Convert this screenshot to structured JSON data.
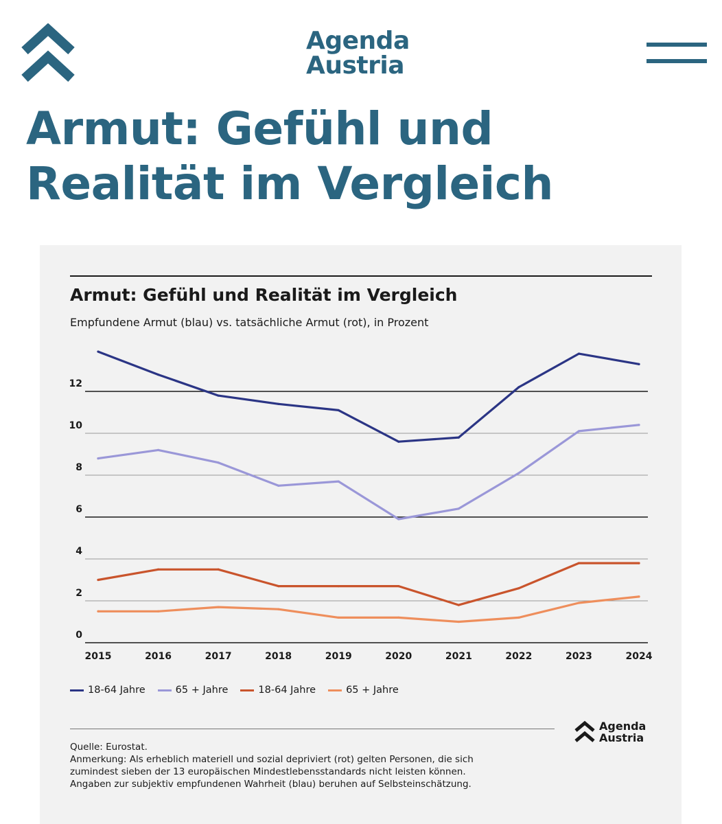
{
  "header": {
    "brand_line1": "Agenda",
    "brand_line2": "Austria",
    "colors": {
      "brand": "#2b6580"
    },
    "icons": {
      "logo": "double-chevron-up-icon",
      "menu": "hamburger-menu-icon"
    }
  },
  "article": {
    "title_line1": "Armut: Gefühl und",
    "title_line2": "Realität im Vergleich"
  },
  "chart_data": {
    "type": "line",
    "title": "Armut: Gefühl und Realität im Vergleich",
    "subtitle": "Empfundene Armut (blau) vs. tatsächliche Armut (rot), in Prozent",
    "xlabel": "",
    "ylabel": "",
    "x": [
      2015,
      2016,
      2017,
      2018,
      2019,
      2020,
      2021,
      2022,
      2023,
      2024
    ],
    "x_tick_labels": [
      "2015",
      "2016",
      "2017",
      "2018",
      "2019",
      "2020",
      "2021",
      "2022",
      "2023",
      "2024"
    ],
    "ylim": [
      0,
      14
    ],
    "y_ticks": [
      0,
      2,
      4,
      6,
      8,
      10,
      12
    ],
    "grid": true,
    "legend_position": "bottom-left",
    "series": [
      {
        "name": "18-64 Jahre",
        "color": "#2b3585",
        "values": [
          13.9,
          12.8,
          11.8,
          11.4,
          11.1,
          9.6,
          9.8,
          12.2,
          13.8,
          13.3
        ]
      },
      {
        "name": "65 + Jahre",
        "color": "#9a97d8",
        "values": [
          8.8,
          9.2,
          8.6,
          7.5,
          7.7,
          5.9,
          6.4,
          8.1,
          10.1,
          10.4
        ]
      },
      {
        "name": "18-64 Jahre",
        "color": "#c9542c",
        "values": [
          3.0,
          3.5,
          3.5,
          2.7,
          2.7,
          2.7,
          1.8,
          2.6,
          3.8,
          3.8
        ]
      },
      {
        "name": "65 + Jahre",
        "color": "#ee8e5c",
        "values": [
          1.5,
          1.5,
          1.7,
          1.6,
          1.2,
          1.2,
          1.0,
          1.2,
          1.9,
          2.2
        ]
      }
    ]
  },
  "footer": {
    "source": "Quelle: Eurostat.",
    "note_line1": "Anmerkung: Als erheblich materiell und sozial depriviert (rot) gelten Personen, die sich",
    "note_line2": "zumindest sieben der 13 europäischen Mindestlebensstandards nicht leisten können.",
    "note_line3": "Angaben zur subjektiv empfundenen Wahrheit (blau) beruhen auf Selbsteinschätzung.",
    "logo_line1": "Agenda",
    "logo_line2": "Austria"
  }
}
